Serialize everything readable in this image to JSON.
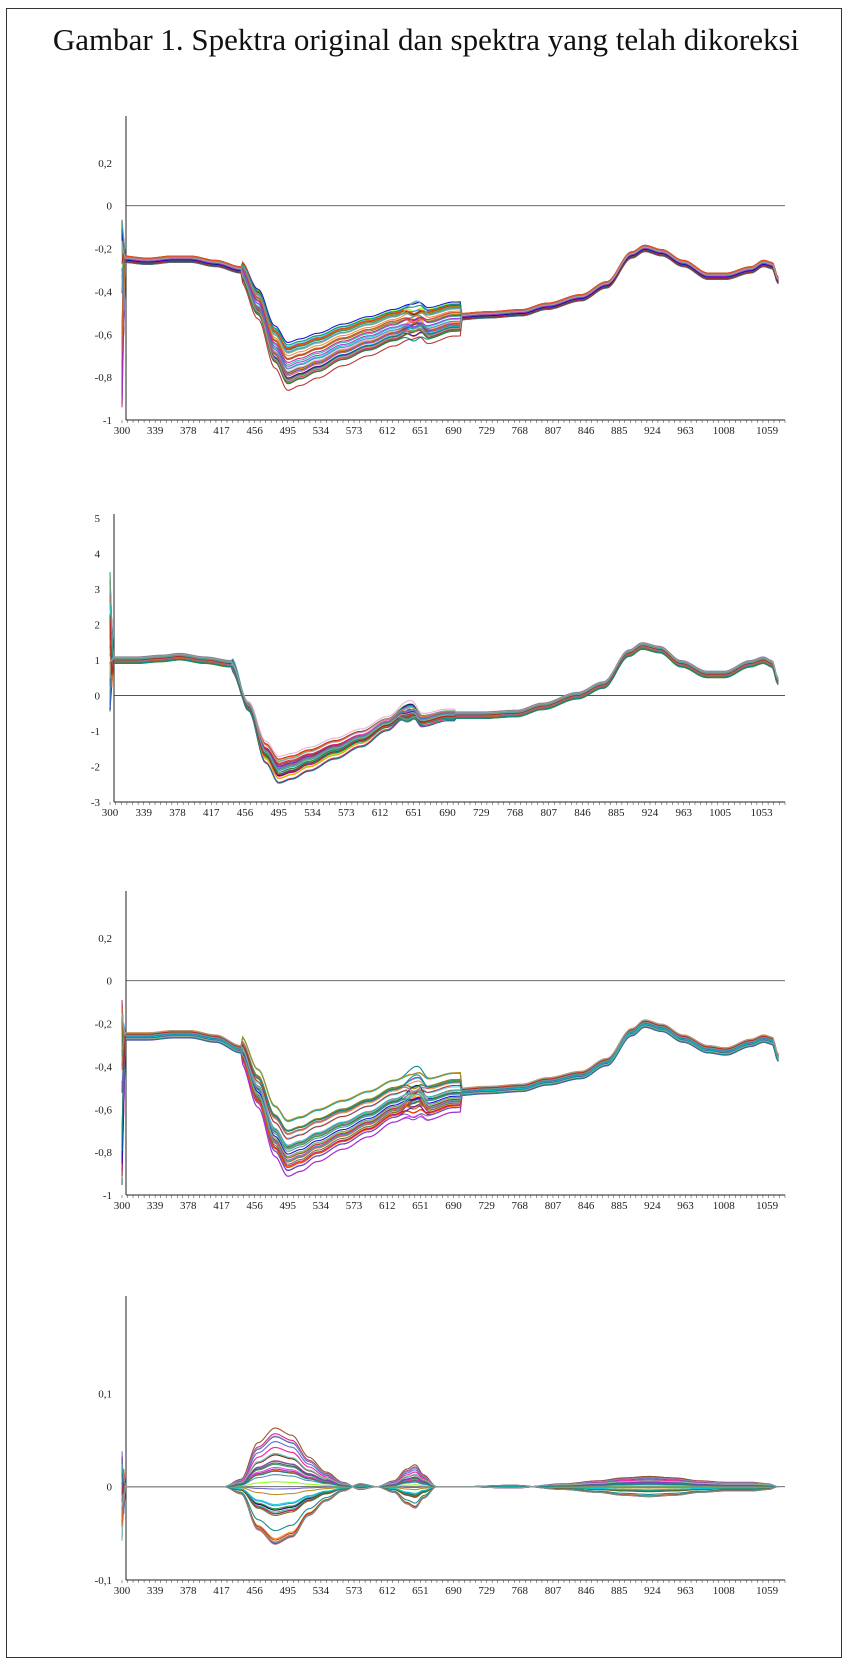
{
  "figure": {
    "title": "Gambar 1. Spektra original dan spektra yang telah dikoreksi"
  },
  "chart_data": [
    {
      "type": "line",
      "panel": "original",
      "xlabel": "",
      "ylabel": "",
      "xlim": [
        300,
        1080
      ],
      "ylim": [
        -1,
        0.4
      ],
      "x_ticks": [
        "300",
        "339",
        "378",
        "417",
        "456",
        "495",
        "534",
        "573",
        "612",
        "651",
        "690",
        "729",
        "768",
        "807",
        "846",
        "885",
        "924",
        "963",
        "1008",
        "1059"
      ],
      "y_ticks": [
        "-1",
        "-0,8",
        "-0,6",
        "-0,4",
        "-0,2",
        "0",
        "0,2"
      ],
      "x_tick_values": [
        300,
        339,
        378,
        417,
        456,
        495,
        534,
        573,
        612,
        651,
        690,
        729,
        768,
        807,
        846,
        885,
        924,
        963,
        1008,
        1059
      ],
      "y_tick_values": [
        -1,
        -0.8,
        -0.6,
        -0.4,
        -0.2,
        0,
        0.2
      ],
      "reference_line": 0,
      "series_count": 42,
      "base_curve": {
        "x": [
          300,
          330,
          360,
          380,
          410,
          440,
          460,
          480,
          495,
          510,
          530,
          560,
          590,
          620,
          640,
          650,
          660,
          690,
          730,
          770,
          800,
          840,
          870,
          900,
          915,
          935,
          960,
          990,
          1010,
          1040,
          1055,
          1065,
          1072
        ],
        "y": [
          -0.25,
          -0.26,
          -0.25,
          -0.25,
          -0.27,
          -0.3,
          -0.45,
          -0.65,
          -0.74,
          -0.72,
          -0.69,
          -0.64,
          -0.6,
          -0.56,
          -0.53,
          -0.52,
          -0.55,
          -0.52,
          -0.51,
          -0.5,
          -0.47,
          -0.43,
          -0.37,
          -0.23,
          -0.2,
          -0.22,
          -0.27,
          -0.33,
          -0.33,
          -0.3,
          -0.27,
          -0.28,
          -0.35
        ]
      },
      "colors": [
        "#e6194b",
        "#3cb44b",
        "#4363d8",
        "#f58231",
        "#911eb4",
        "#42d4f4",
        "#f032e6",
        "#1f8f5f",
        "#800000",
        "#008080",
        "#000075",
        "#9a6324",
        "#808000",
        "#e6a8d7",
        "#2f4f4f",
        "#ff1493",
        "#00bfff",
        "#7fff00",
        "#8b4513",
        "#4b0082",
        "#20b2aa",
        "#dc143c",
        "#228b22",
        "#1e90ff",
        "#ff8c00",
        "#6a5acd",
        "#b8860b",
        "#2e8b57",
        "#c71585",
        "#556b2f",
        "#0000cd",
        "#ff4500",
        "#00ced1",
        "#9932cc",
        "#8fbc8f",
        "#cd5c5c",
        "#4682b4",
        "#d2691e",
        "#008b8b",
        "#b22222",
        "#5f9ea0",
        "#a0a0a0"
      ]
    },
    {
      "type": "line",
      "panel": "corrected-1",
      "xlabel": "",
      "ylabel": "",
      "xlim": [
        300,
        1080
      ],
      "ylim": [
        -3,
        5
      ],
      "x_ticks": [
        "300",
        "339",
        "378",
        "417",
        "456",
        "495",
        "534",
        "573",
        "612",
        "651",
        "690",
        "729",
        "768",
        "807",
        "846",
        "885",
        "924",
        "963",
        "1005",
        "1053"
      ],
      "y_ticks": [
        "-3",
        "-2",
        "-1",
        "0",
        "1",
        "2",
        "3",
        "4",
        "5"
      ],
      "x_tick_values": [
        300,
        339,
        378,
        417,
        456,
        495,
        534,
        573,
        612,
        651,
        690,
        729,
        768,
        807,
        846,
        885,
        924,
        963,
        1005,
        1053
      ],
      "y_tick_values": [
        -3,
        -2,
        -1,
        0,
        1,
        2,
        3,
        4,
        5
      ],
      "reference_line": 0,
      "series_count": 42,
      "base_curve": {
        "x": [
          300,
          330,
          360,
          380,
          410,
          440,
          460,
          480,
          495,
          510,
          530,
          560,
          590,
          620,
          640,
          650,
          660,
          690,
          730,
          770,
          800,
          840,
          870,
          900,
          915,
          935,
          960,
          990,
          1010,
          1040,
          1055,
          1065,
          1072
        ],
        "y": [
          1.0,
          1.0,
          1.05,
          1.1,
          1.0,
          0.9,
          -0.3,
          -1.6,
          -2.1,
          -2.0,
          -1.8,
          -1.5,
          -1.2,
          -0.8,
          -0.5,
          -0.45,
          -0.7,
          -0.55,
          -0.55,
          -0.5,
          -0.3,
          0.0,
          0.3,
          1.2,
          1.4,
          1.3,
          0.9,
          0.6,
          0.6,
          0.9,
          1.0,
          0.9,
          0.4
        ]
      },
      "colors": [
        "#e6194b",
        "#3cb44b",
        "#4363d8",
        "#f58231",
        "#911eb4",
        "#42d4f4",
        "#f032e6",
        "#1f8f5f",
        "#800000",
        "#008080",
        "#000075",
        "#9a6324",
        "#808000",
        "#e6a8d7",
        "#2f4f4f",
        "#ff1493",
        "#00bfff",
        "#7fff00",
        "#8b4513",
        "#4b0082",
        "#20b2aa",
        "#dc143c",
        "#228b22",
        "#1e90ff",
        "#ff8c00",
        "#6a5acd",
        "#b8860b",
        "#2e8b57",
        "#c71585",
        "#556b2f",
        "#0000cd",
        "#ff4500",
        "#00ced1",
        "#9932cc",
        "#8fbc8f",
        "#cd5c5c",
        "#4682b4",
        "#d2691e",
        "#008b8b",
        "#b22222",
        "#5f9ea0",
        "#a0a0a0"
      ]
    },
    {
      "type": "line",
      "panel": "corrected-2",
      "xlabel": "",
      "ylabel": "",
      "xlim": [
        300,
        1080
      ],
      "ylim": [
        -1,
        0.4
      ],
      "x_ticks": [
        "300",
        "339",
        "378",
        "417",
        "456",
        "495",
        "534",
        "573",
        "612",
        "651",
        "690",
        "729",
        "768",
        "807",
        "846",
        "885",
        "924",
        "963",
        "1008",
        "1059"
      ],
      "y_ticks": [
        "-1",
        "-0,8",
        "-0,6",
        "-0,4",
        "-0,2",
        "0",
        "0,2"
      ],
      "x_tick_values": [
        300,
        339,
        378,
        417,
        456,
        495,
        534,
        573,
        612,
        651,
        690,
        729,
        768,
        807,
        846,
        885,
        924,
        963,
        1008,
        1059
      ],
      "y_tick_values": [
        -1,
        -0.8,
        -0.6,
        -0.4,
        -0.2,
        0,
        0.2
      ],
      "reference_line": 0,
      "series_count": 42,
      "base_curve": {
        "x": [
          300,
          330,
          360,
          380,
          410,
          440,
          460,
          480,
          495,
          510,
          530,
          560,
          590,
          620,
          640,
          650,
          660,
          690,
          730,
          770,
          800,
          840,
          870,
          900,
          915,
          935,
          960,
          990,
          1010,
          1040,
          1055,
          1065,
          1072
        ],
        "y": [
          -0.26,
          -0.26,
          -0.25,
          -0.25,
          -0.27,
          -0.32,
          -0.5,
          -0.7,
          -0.78,
          -0.76,
          -0.72,
          -0.67,
          -0.62,
          -0.56,
          -0.53,
          -0.52,
          -0.55,
          -0.52,
          -0.51,
          -0.5,
          -0.47,
          -0.44,
          -0.38,
          -0.24,
          -0.2,
          -0.22,
          -0.27,
          -0.32,
          -0.33,
          -0.29,
          -0.27,
          -0.28,
          -0.36
        ]
      },
      "colors": [
        "#e6194b",
        "#3cb44b",
        "#4363d8",
        "#f58231",
        "#911eb4",
        "#42d4f4",
        "#f032e6",
        "#1f8f5f",
        "#800000",
        "#008080",
        "#000075",
        "#9a6324",
        "#808000",
        "#e6a8d7",
        "#2f4f4f",
        "#ff1493",
        "#00bfff",
        "#7fff00",
        "#8b4513",
        "#4b0082",
        "#20b2aa",
        "#dc143c",
        "#228b22",
        "#1e90ff",
        "#ff8c00",
        "#6a5acd",
        "#b8860b",
        "#2e8b57",
        "#c71585",
        "#556b2f",
        "#0000cd",
        "#ff4500",
        "#00ced1",
        "#9932cc",
        "#8fbc8f",
        "#cd5c5c",
        "#4682b4",
        "#d2691e",
        "#008b8b",
        "#b22222",
        "#5f9ea0",
        "#a0a0a0"
      ]
    },
    {
      "type": "line",
      "panel": "corrected-3",
      "xlabel": "",
      "ylabel": "",
      "xlim": [
        300,
        1080
      ],
      "ylim": [
        -0.1,
        0.2
      ],
      "x_ticks": [
        "300",
        "339",
        "378",
        "417",
        "456",
        "495",
        "534",
        "573",
        "612",
        "651",
        "690",
        "729",
        "768",
        "807",
        "846",
        "885",
        "924",
        "963",
        "1008",
        "1059"
      ],
      "y_ticks": [
        "-0,1",
        "0",
        "0,1"
      ],
      "x_tick_values": [
        300,
        339,
        378,
        417,
        456,
        495,
        534,
        573,
        612,
        651,
        690,
        729,
        768,
        807,
        846,
        885,
        924,
        963,
        1008,
        1059
      ],
      "y_tick_values": [
        -0.1,
        0,
        0.1
      ],
      "reference_line": 0,
      "series_count": 42,
      "base_curve": {
        "x": [
          300,
          380,
          420,
          440,
          460,
          480,
          500,
          520,
          540,
          560,
          580,
          600,
          620,
          635,
          645,
          655,
          670,
          700,
          760,
          820,
          860,
          890,
          920,
          950,
          980,
          1010,
          1040,
          1060,
          1072
        ],
        "y": [
          0,
          0,
          0,
          0.005,
          0.03,
          0.04,
          0.035,
          0.02,
          0.01,
          0.003,
          -0.002,
          0,
          0.004,
          0.012,
          0.015,
          0.008,
          0,
          0,
          -0.001,
          0.002,
          0.004,
          0.006,
          0.007,
          0.006,
          0.004,
          0.003,
          0.003,
          0.002,
          0
        ]
      },
      "colors": [
        "#e6194b",
        "#3cb44b",
        "#4363d8",
        "#f58231",
        "#911eb4",
        "#42d4f4",
        "#f032e6",
        "#1f8f5f",
        "#800000",
        "#008080",
        "#000075",
        "#9a6324",
        "#808000",
        "#e6a8d7",
        "#2f4f4f",
        "#ff1493",
        "#00bfff",
        "#7fff00",
        "#8b4513",
        "#4b0082",
        "#20b2aa",
        "#dc143c",
        "#228b22",
        "#1e90ff",
        "#ff8c00",
        "#6a5acd",
        "#b8860b",
        "#2e8b57",
        "#c71585",
        "#556b2f",
        "#0000cd",
        "#ff4500",
        "#00ced1",
        "#9932cc",
        "#8fbc8f",
        "#cd5c5c",
        "#4682b4",
        "#d2691e",
        "#008b8b",
        "#b22222",
        "#5f9ea0",
        "#a0a0a0"
      ]
    }
  ]
}
